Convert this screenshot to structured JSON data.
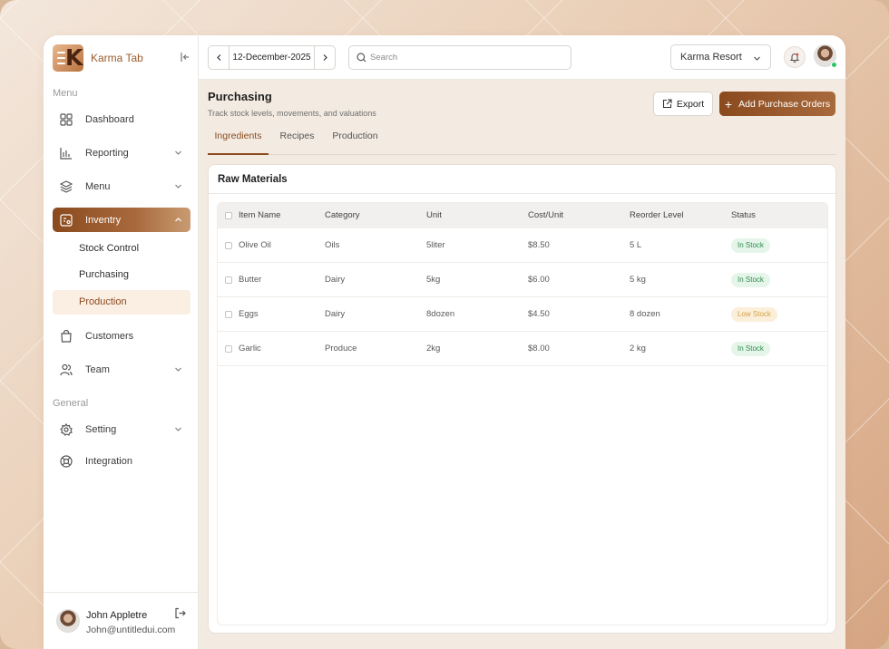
{
  "brand": {
    "name": "Karma Tab"
  },
  "sidebar": {
    "menu_label": "Menu",
    "general_label": "General",
    "items": [
      {
        "label": "Dashboard"
      },
      {
        "label": "Reporting"
      },
      {
        "label": "Menu"
      },
      {
        "label": "Inventry"
      },
      {
        "label": "Customers"
      },
      {
        "label": "Team"
      },
      {
        "label": "Setting"
      },
      {
        "label": "Integration"
      }
    ],
    "inventory_sub": [
      {
        "label": "Stock Control"
      },
      {
        "label": "Purchasing"
      },
      {
        "label": "Production"
      }
    ]
  },
  "user": {
    "name": "John Appletre",
    "email": "John@untitledui.com"
  },
  "topbar": {
    "date": "12-December-2025",
    "search_placeholder": "Search",
    "property": "Karma Resort"
  },
  "page": {
    "title": "Purchasing",
    "subtitle": "Track stock levels, movements, and valuations",
    "export_label": "Export",
    "add_label": "Add Purchase Orders",
    "tabs": [
      "Ingredients",
      "Recipes",
      "Production"
    ]
  },
  "table": {
    "title": "Raw Materials",
    "columns": [
      "Item Name",
      "Category",
      "Unit",
      "Cost/Unit",
      "Reorder Level",
      "Status"
    ],
    "rows": [
      {
        "name": "Olive Oil",
        "category": "Oils",
        "unit": "5liter",
        "cost": "$8.50",
        "reorder": "5 L",
        "status": "In Stock"
      },
      {
        "name": "Butter",
        "category": "Dairy",
        "unit": "5kg",
        "cost": "$6.00",
        "reorder": "5 kg",
        "status": "In Stock"
      },
      {
        "name": "Eggs",
        "category": "Dairy",
        "unit": "8dozen",
        "cost": "$4.50",
        "reorder": "8 dozen",
        "status": "Low Stock"
      },
      {
        "name": "Garlic",
        "category": "Produce",
        "unit": "2kg",
        "cost": "$8.00",
        "reorder": "2 kg",
        "status": "In Stock"
      }
    ]
  },
  "colors": {
    "accent": "#8a4a1e",
    "in_stock": "#2f8b4d",
    "low_stock": "#d3a14a"
  }
}
